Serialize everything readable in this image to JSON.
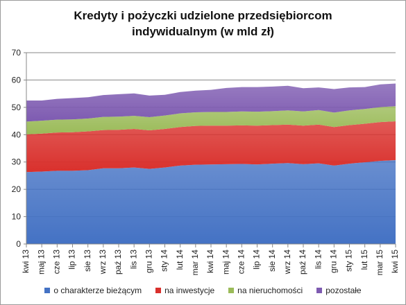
{
  "chart_data": {
    "type": "area",
    "stacked": true,
    "title_lines": [
      "Kredyty i pożyczki udzielone przedsiębiorcom",
      "indywidualnym (w mld zł)"
    ],
    "categories": [
      "kwi 13",
      "maj 13",
      "cze 13",
      "lip 13",
      "sie 13",
      "wrz 13",
      "paź 13",
      "lis 13",
      "gru 13",
      "sty 14",
      "lut 14",
      "mar 14",
      "kwi 14",
      "maj 14",
      "cze 14",
      "lip 14",
      "sie 14",
      "wrz 14",
      "paź 14",
      "lis 14",
      "gru 14",
      "sty 15",
      "lut 15",
      "mar 15",
      "kwi 15"
    ],
    "ylim": [
      0,
      70
    ],
    "yticks": [
      0,
      10,
      20,
      30,
      40,
      50,
      60,
      70
    ],
    "grid": true,
    "legend_position": "bottom",
    "series": [
      {
        "name": "o charakterze bieżącym",
        "color": "#4472c4",
        "values": [
          26.3,
          26.5,
          26.8,
          26.8,
          27.0,
          27.7,
          27.7,
          28.0,
          27.5,
          28.0,
          28.7,
          29.0,
          29.1,
          29.2,
          29.3,
          29.1,
          29.4,
          29.6,
          29.2,
          29.5,
          28.7,
          29.4,
          29.9,
          30.4,
          30.7
        ]
      },
      {
        "name": "na inwestycje",
        "color": "#d9302c",
        "values": [
          13.8,
          13.9,
          14.0,
          14.1,
          14.2,
          14.0,
          14.1,
          14.1,
          14.1,
          14.1,
          14.1,
          14.2,
          14.2,
          14.1,
          14.1,
          14.2,
          14.1,
          14.1,
          14.1,
          14.2,
          14.1,
          14.1,
          14.1,
          14.2,
          14.2
        ]
      },
      {
        "name": "na nieruchomości",
        "color": "#9bbb59",
        "values": [
          4.7,
          4.7,
          4.7,
          4.7,
          4.7,
          4.8,
          4.8,
          4.8,
          4.8,
          4.9,
          5.0,
          5.0,
          5.0,
          5.0,
          5.1,
          5.1,
          5.1,
          5.2,
          5.2,
          5.3,
          5.3,
          5.4,
          5.4,
          5.5,
          5.5
        ]
      },
      {
        "name": "pozostałe",
        "color": "#7e5bb1",
        "values": [
          7.7,
          7.4,
          7.6,
          7.8,
          7.8,
          8.0,
          8.2,
          8.2,
          7.9,
          7.6,
          7.8,
          7.9,
          8.1,
          8.8,
          8.9,
          9.0,
          9.0,
          9.0,
          8.5,
          8.3,
          8.6,
          8.4,
          8.0,
          8.3,
          8.3
        ]
      }
    ]
  }
}
